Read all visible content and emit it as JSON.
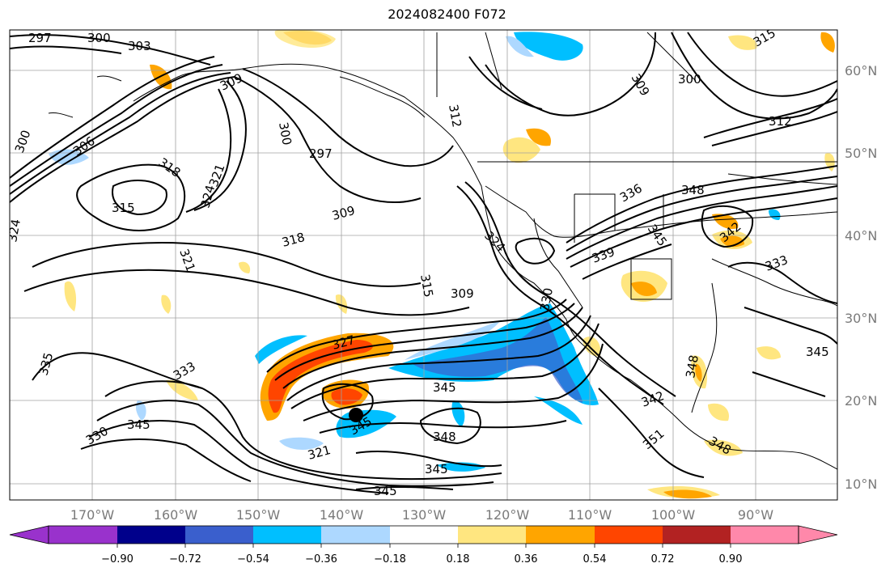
{
  "title": "2024082400 F072",
  "longitude_labels": [
    "170°W",
    "160°W",
    "150°W",
    "140°W",
    "130°W",
    "120°W",
    "110°W",
    "100°W",
    "90°W"
  ],
  "latitude_labels": [
    "60°N",
    "50°N",
    "40°N",
    "30°N",
    "20°N",
    "10°N"
  ],
  "colorbar": {
    "tick_labels": [
      "−0.90",
      "−0.72",
      "−0.54",
      "−0.36",
      "−0.18",
      "0.18",
      "0.36",
      "0.54",
      "0.72",
      "0.90"
    ],
    "colors": [
      "#9932cc",
      "#00008b",
      "#3a5fcd",
      "#00bfff",
      "#add8ff",
      "#ffffff",
      "#ffe680",
      "#ffa500",
      "#ff4500",
      "#b22222",
      "#ff88aa"
    ]
  },
  "contour_labels": [
    "297",
    "300",
    "303",
    "300",
    "306",
    "309",
    "318",
    "315",
    "324",
    "321",
    "324",
    "300",
    "297",
    "309",
    "318",
    "321",
    "312",
    "309",
    "324",
    "315",
    "336",
    "348",
    "345",
    "339",
    "342",
    "333",
    "300",
    "309",
    "312",
    "315",
    "330",
    "327",
    "333",
    "335",
    "330",
    "345",
    "321",
    "345",
    "348",
    "345",
    "345",
    "342",
    "348",
    "351",
    "345",
    "345",
    "348"
  ],
  "cyclone_center_marker": "filled-black-dot"
}
